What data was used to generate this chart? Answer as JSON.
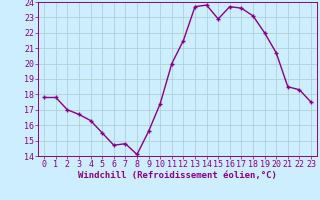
{
  "x": [
    0,
    1,
    2,
    3,
    4,
    5,
    6,
    7,
    8,
    9,
    10,
    11,
    12,
    13,
    14,
    15,
    16,
    17,
    18,
    19,
    20,
    21,
    22,
    23
  ],
  "y": [
    17.8,
    17.8,
    17.0,
    16.7,
    16.3,
    15.5,
    14.7,
    14.8,
    14.1,
    15.6,
    17.4,
    20.0,
    21.5,
    23.7,
    23.8,
    22.9,
    23.7,
    23.6,
    23.1,
    22.0,
    20.7,
    18.5,
    18.3,
    17.5
  ],
  "line_color": "#880088",
  "marker": "+",
  "bg_color": "#cceeff",
  "grid_color": "#aacccc",
  "xlabel": "Windchill (Refroidissement éolien,°C)",
  "xlim": [
    -0.5,
    23.5
  ],
  "ylim": [
    14,
    24
  ],
  "yticks": [
    14,
    15,
    16,
    17,
    18,
    19,
    20,
    21,
    22,
    23,
    24
  ],
  "xticks": [
    0,
    1,
    2,
    3,
    4,
    5,
    6,
    7,
    8,
    9,
    10,
    11,
    12,
    13,
    14,
    15,
    16,
    17,
    18,
    19,
    20,
    21,
    22,
    23
  ],
  "axis_label_color": "#880088",
  "tick_color": "#880088",
  "xlabel_fontsize": 6.5,
  "tick_fontsize": 6.0,
  "linewidth": 1.0,
  "markersize": 3.0,
  "markeredgewidth": 1.0
}
